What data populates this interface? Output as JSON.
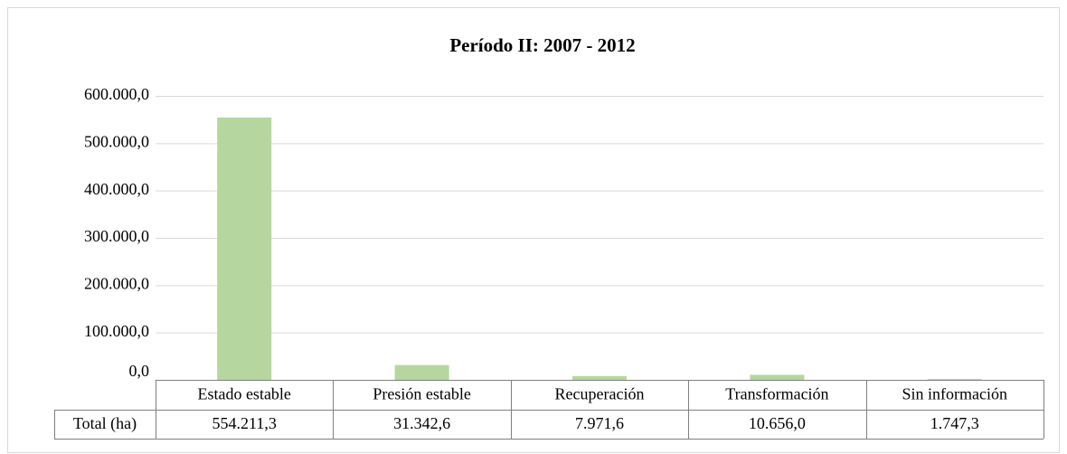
{
  "chart_data": {
    "type": "bar",
    "title": "Período II: 2007 - 2012",
    "categories": [
      "Estado estable",
      "Presión estable",
      "Recuperación",
      "Transformación",
      "Sin información"
    ],
    "series": [
      {
        "name": "Total (ha)",
        "color": "#b5d79f",
        "values": [
          554211.3,
          31342.6,
          7971.6,
          10656.0,
          1747.3
        ],
        "value_labels": [
          "554.211,3",
          "31.342,6",
          "7.971,6",
          "10.656,0",
          "1.747,3"
        ]
      }
    ],
    "ylim": [
      0,
      600000
    ],
    "yticks": [
      {
        "value": 0,
        "label": "0,0"
      },
      {
        "value": 100000,
        "label": "100.000,0"
      },
      {
        "value": 200000,
        "label": "200.000,0"
      },
      {
        "value": 300000,
        "label": "300.000,0"
      },
      {
        "value": 400000,
        "label": "400.000,0"
      },
      {
        "value": 500000,
        "label": "500.000,0"
      },
      {
        "value": 600000,
        "label": "600.000,0"
      }
    ],
    "grid": true
  }
}
